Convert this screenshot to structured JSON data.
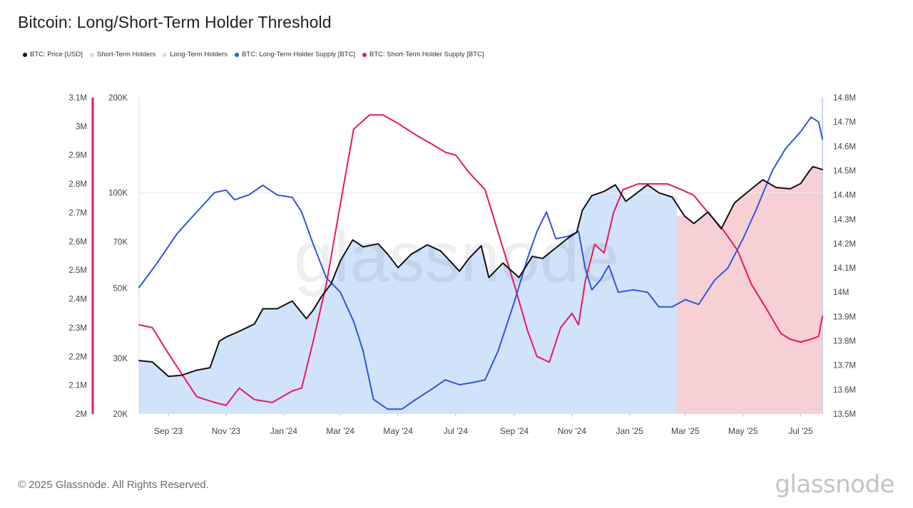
{
  "header": {
    "title": "Bitcoin: Long/Short-Term Holder Threshold"
  },
  "legend": [
    {
      "label": "BTC: Price [USD]",
      "color": "#111111"
    },
    {
      "label": "Short-Term Holders",
      "color": "#f7cdd3"
    },
    {
      "label": "Long-Term Holders",
      "color": "#cfe0fb"
    },
    {
      "label": "BTC: Long-Term Holder Supply [BTC]",
      "color": "#2f55e0"
    },
    {
      "label": "BTC: Short-Term Holder Supply [BTC]",
      "color": "#e8185c"
    }
  ],
  "footer": {
    "copyright": "© 2025 Glassnode. All Rights Reserved.",
    "brand": "glassnode"
  },
  "chart_data": {
    "type": "line",
    "title": "Bitcoin: Long/Short-Term Holder Threshold",
    "x_ticks": [
      "Sep '23",
      "Nov '23",
      "Jan '24",
      "Mar '24",
      "May '24",
      "Jul '24",
      "Sep '24",
      "Nov '24",
      "Jan '25",
      "Mar '25",
      "May '25",
      "Jul '25"
    ],
    "x_tick_dates": [
      "2023-09-01",
      "2023-11-01",
      "2024-01-01",
      "2024-03-01",
      "2024-05-01",
      "2024-07-01",
      "2024-09-01",
      "2024-11-01",
      "2025-01-01",
      "2025-03-01",
      "2025-05-01",
      "2025-07-01"
    ],
    "x_range": [
      "2023-08-01",
      "2025-07-24"
    ],
    "axes": {
      "price": {
        "scale": "log",
        "range": [
          20000,
          200000
        ],
        "ticks": [
          "200K",
          "100K",
          "70K",
          "50K",
          "30K",
          "20K"
        ],
        "tick_values": [
          200000,
          100000,
          70000,
          50000,
          30000,
          20000
        ]
      },
      "sth_supply": {
        "scale": "linear",
        "range": [
          2000000,
          3100000
        ],
        "color": "#e8185c",
        "ticks": [
          "3.1M",
          "3M",
          "2.9M",
          "2.8M",
          "2.7M",
          "2.6M",
          "2.5M",
          "2.4M",
          "2.3M",
          "2.2M",
          "2.1M",
          "2M"
        ],
        "tick_values": [
          3100000,
          3000000,
          2900000,
          2800000,
          2700000,
          2600000,
          2500000,
          2400000,
          2300000,
          2200000,
          2100000,
          2000000
        ]
      },
      "lth_supply": {
        "scale": "linear",
        "range": [
          13500000,
          14800000
        ],
        "color": "#2f55e0",
        "ticks": [
          "14.8M",
          "14.7M",
          "14.6M",
          "14.5M",
          "14.4M",
          "14.3M",
          "14.2M",
          "14.1M",
          "14M",
          "13.9M",
          "13.8M",
          "13.7M",
          "13.6M",
          "13.5M"
        ],
        "tick_values": [
          14800000,
          14700000,
          14600000,
          14500000,
          14400000,
          14300000,
          14200000,
          14100000,
          14000000,
          13900000,
          13800000,
          13700000,
          13600000,
          13500000
        ]
      }
    },
    "regimes": [
      {
        "name": "Long-Term Holders",
        "start": "2023-08-01",
        "end": "2025-02-20",
        "color": "#cfe0fb"
      },
      {
        "name": "Short-Term Holders",
        "start": "2025-02-20",
        "end": "2025-07-24",
        "color": "#f7cdd3"
      }
    ],
    "series": [
      {
        "name": "BTC: Price [USD]",
        "axis": "price",
        "color": "#111111",
        "points": [
          [
            "2023-08-01",
            29500
          ],
          [
            "2023-08-15",
            29200
          ],
          [
            "2023-09-01",
            26300
          ],
          [
            "2023-09-15",
            26500
          ],
          [
            "2023-10-01",
            27500
          ],
          [
            "2023-10-15",
            28000
          ],
          [
            "2023-10-25",
            34000
          ],
          [
            "2023-11-01",
            35000
          ],
          [
            "2023-11-15",
            36500
          ],
          [
            "2023-12-01",
            38500
          ],
          [
            "2023-12-10",
            43000
          ],
          [
            "2023-12-25",
            43000
          ],
          [
            "2024-01-10",
            45500
          ],
          [
            "2024-01-25",
            40000
          ],
          [
            "2024-02-01",
            42500
          ],
          [
            "2024-02-10",
            47000
          ],
          [
            "2024-02-20",
            51500
          ],
          [
            "2024-03-01",
            61000
          ],
          [
            "2024-03-14",
            71000
          ],
          [
            "2024-03-25",
            67500
          ],
          [
            "2024-04-10",
            69000
          ],
          [
            "2024-04-20",
            64000
          ],
          [
            "2024-05-01",
            58000
          ],
          [
            "2024-05-15",
            64000
          ],
          [
            "2024-06-01",
            68500
          ],
          [
            "2024-06-15",
            65500
          ],
          [
            "2024-07-05",
            56500
          ],
          [
            "2024-07-15",
            62000
          ],
          [
            "2024-07-28",
            68000
          ],
          [
            "2024-08-05",
            54000
          ],
          [
            "2024-08-20",
            60000
          ],
          [
            "2024-09-06",
            54000
          ],
          [
            "2024-09-20",
            63000
          ],
          [
            "2024-10-01",
            62000
          ],
          [
            "2024-10-15",
            67000
          ],
          [
            "2024-10-28",
            72000
          ],
          [
            "2024-11-06",
            75000
          ],
          [
            "2024-11-12",
            88000
          ],
          [
            "2024-11-22",
            98000
          ],
          [
            "2024-12-05",
            101000
          ],
          [
            "2024-12-17",
            106000
          ],
          [
            "2024-12-28",
            94000
          ],
          [
            "2025-01-07",
            99000
          ],
          [
            "2025-01-20",
            106000
          ],
          [
            "2025-02-01",
            100000
          ],
          [
            "2025-02-15",
            97000
          ],
          [
            "2025-02-28",
            84500
          ],
          [
            "2025-03-10",
            80000
          ],
          [
            "2025-03-25",
            87000
          ],
          [
            "2025-04-08",
            77000
          ],
          [
            "2025-04-22",
            93000
          ],
          [
            "2025-05-10",
            103000
          ],
          [
            "2025-05-22",
            110000
          ],
          [
            "2025-06-05",
            104000
          ],
          [
            "2025-06-20",
            103000
          ],
          [
            "2025-07-01",
            107000
          ],
          [
            "2025-07-10",
            117000
          ],
          [
            "2025-07-14",
            121000
          ],
          [
            "2025-07-24",
            118500
          ]
        ]
      },
      {
        "name": "BTC: Long-Term Holder Supply [BTC]",
        "axis": "lth_supply",
        "color": "#2f55e0",
        "points": [
          [
            "2023-08-01",
            14020000
          ],
          [
            "2023-08-20",
            14120000
          ],
          [
            "2023-09-10",
            14240000
          ],
          [
            "2023-10-01",
            14330000
          ],
          [
            "2023-10-20",
            14410000
          ],
          [
            "2023-11-01",
            14420000
          ],
          [
            "2023-11-10",
            14380000
          ],
          [
            "2023-11-25",
            14400000
          ],
          [
            "2023-12-10",
            14440000
          ],
          [
            "2023-12-25",
            14400000
          ],
          [
            "2024-01-10",
            14390000
          ],
          [
            "2024-01-20",
            14330000
          ],
          [
            "2024-02-01",
            14200000
          ],
          [
            "2024-02-15",
            14060000
          ],
          [
            "2024-03-01",
            14000000
          ],
          [
            "2024-03-15",
            13880000
          ],
          [
            "2024-03-25",
            13760000
          ],
          [
            "2024-04-05",
            13560000
          ],
          [
            "2024-04-20",
            13520000
          ],
          [
            "2024-05-05",
            13520000
          ],
          [
            "2024-05-20",
            13560000
          ],
          [
            "2024-06-05",
            13600000
          ],
          [
            "2024-06-20",
            13640000
          ],
          [
            "2024-07-05",
            13620000
          ],
          [
            "2024-07-20",
            13630000
          ],
          [
            "2024-08-01",
            13640000
          ],
          [
            "2024-08-15",
            13760000
          ],
          [
            "2024-09-01",
            13960000
          ],
          [
            "2024-09-15",
            14140000
          ],
          [
            "2024-09-25",
            14250000
          ],
          [
            "2024-10-05",
            14330000
          ],
          [
            "2024-10-15",
            14220000
          ],
          [
            "2024-10-28",
            14230000
          ],
          [
            "2024-11-08",
            14250000
          ],
          [
            "2024-11-15",
            14100000
          ],
          [
            "2024-11-22",
            14010000
          ],
          [
            "2024-12-01",
            14050000
          ],
          [
            "2024-12-10",
            14110000
          ],
          [
            "2024-12-20",
            14000000
          ],
          [
            "2025-01-05",
            14010000
          ],
          [
            "2025-01-20",
            14000000
          ],
          [
            "2025-02-01",
            13940000
          ],
          [
            "2025-02-15",
            13940000
          ],
          [
            "2025-03-01",
            13970000
          ],
          [
            "2025-03-15",
            13950000
          ],
          [
            "2025-04-01",
            14050000
          ],
          [
            "2025-04-15",
            14100000
          ],
          [
            "2025-05-01",
            14220000
          ],
          [
            "2025-05-15",
            14340000
          ],
          [
            "2025-06-01",
            14500000
          ],
          [
            "2025-06-15",
            14590000
          ],
          [
            "2025-07-01",
            14660000
          ],
          [
            "2025-07-12",
            14720000
          ],
          [
            "2025-07-20",
            14700000
          ],
          [
            "2025-07-24",
            14630000
          ]
        ]
      },
      {
        "name": "BTC: Short-Term Holder Supply [BTC]",
        "axis": "sth_supply",
        "color": "#e8185c",
        "points": [
          [
            "2023-08-01",
            2310000
          ],
          [
            "2023-08-15",
            2300000
          ],
          [
            "2023-09-01",
            2210000
          ],
          [
            "2023-09-15",
            2140000
          ],
          [
            "2023-10-01",
            2060000
          ],
          [
            "2023-10-20",
            2040000
          ],
          [
            "2023-11-01",
            2030000
          ],
          [
            "2023-11-15",
            2090000
          ],
          [
            "2023-12-01",
            2050000
          ],
          [
            "2023-12-20",
            2040000
          ],
          [
            "2024-01-10",
            2080000
          ],
          [
            "2024-01-20",
            2090000
          ],
          [
            "2024-02-01",
            2250000
          ],
          [
            "2024-02-15",
            2450000
          ],
          [
            "2024-03-01",
            2730000
          ],
          [
            "2024-03-15",
            2990000
          ],
          [
            "2024-04-01",
            3040000
          ],
          [
            "2024-04-15",
            3040000
          ],
          [
            "2024-05-01",
            3010000
          ],
          [
            "2024-05-20",
            2970000
          ],
          [
            "2024-06-05",
            2940000
          ],
          [
            "2024-06-20",
            2910000
          ],
          [
            "2024-07-01",
            2900000
          ],
          [
            "2024-07-15",
            2840000
          ],
          [
            "2024-08-01",
            2780000
          ],
          [
            "2024-08-15",
            2630000
          ],
          [
            "2024-09-01",
            2450000
          ],
          [
            "2024-09-15",
            2290000
          ],
          [
            "2024-09-25",
            2200000
          ],
          [
            "2024-10-08",
            2180000
          ],
          [
            "2024-10-20",
            2300000
          ],
          [
            "2024-11-01",
            2350000
          ],
          [
            "2024-11-08",
            2310000
          ],
          [
            "2024-11-15",
            2460000
          ],
          [
            "2024-11-25",
            2590000
          ],
          [
            "2024-12-05",
            2560000
          ],
          [
            "2024-12-15",
            2700000
          ],
          [
            "2024-12-25",
            2780000
          ],
          [
            "2025-01-10",
            2800000
          ],
          [
            "2025-01-25",
            2800000
          ],
          [
            "2025-02-10",
            2800000
          ],
          [
            "2025-02-25",
            2780000
          ],
          [
            "2025-03-10",
            2760000
          ],
          [
            "2025-03-25",
            2700000
          ],
          [
            "2025-04-10",
            2640000
          ],
          [
            "2025-04-25",
            2570000
          ],
          [
            "2025-05-10",
            2450000
          ],
          [
            "2025-05-25",
            2370000
          ],
          [
            "2025-06-10",
            2280000
          ],
          [
            "2025-06-20",
            2260000
          ],
          [
            "2025-07-01",
            2250000
          ],
          [
            "2025-07-12",
            2260000
          ],
          [
            "2025-07-20",
            2270000
          ],
          [
            "2025-07-24",
            2340000
          ]
        ]
      }
    ]
  }
}
